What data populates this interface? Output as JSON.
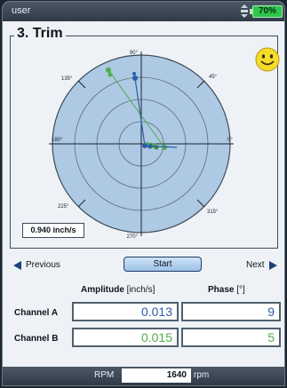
{
  "status_bar": {
    "user": "user",
    "battery": "70%"
  },
  "title": "3. Trim",
  "polar": {
    "angle_labels": {
      "a90": "90°",
      "a45": "45°",
      "a0": "0°",
      "a315": "315°",
      "a270": "270°",
      "a225": "225°",
      "a180": "180°",
      "a135": "135°"
    }
  },
  "amplitude_scale": "0.940 inch/s",
  "nav": {
    "previous": "Previous",
    "start": "Start",
    "next": "Next"
  },
  "table": {
    "amplitude_header": "Amplitude",
    "amplitude_unit": " [inch/s]",
    "phase_header": "Phase",
    "phase_unit": " [°]",
    "rows": [
      {
        "label": "Channel A",
        "amplitude": "0.013",
        "phase": "9"
      },
      {
        "label": "Channel B",
        "amplitude": "0.015",
        "phase": "5"
      }
    ]
  },
  "rpm": {
    "label": "RPM",
    "value": "1640",
    "unit": "rpm"
  },
  "colors": {
    "channel_a": "#2a5ea8",
    "channel_b": "#4fae4a",
    "polar_fill": "#aec9e4"
  }
}
